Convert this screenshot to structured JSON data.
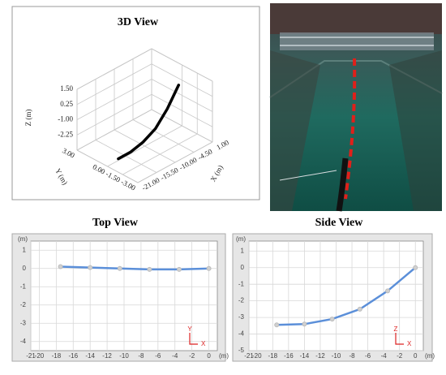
{
  "chart_data": [
    {
      "type": "line3d",
      "title": "3D View",
      "xlabel": "X (m)",
      "ylabel": "Y (m)",
      "zlabel": "Z (m)",
      "xlim": [
        -21,
        1
      ],
      "ylim": [
        -3,
        3
      ],
      "zlim": [
        -3.5,
        1.5
      ],
      "xticks": [
        {
          "value": 1,
          "label": "1.00"
        },
        {
          "value": -4.5,
          "label": "-4.50"
        },
        {
          "value": -10,
          "label": "-10.00"
        },
        {
          "value": -15.5,
          "label": "-15.50"
        },
        {
          "value": -21,
          "label": "-21.00"
        }
      ],
      "yticks": [
        {
          "value": 3,
          "label": "3.00"
        },
        {
          "value": 0,
          "label": "0.00"
        },
        {
          "value": -1.5,
          "label": "-1.50"
        },
        {
          "value": -3,
          "label": "-3.00"
        }
      ],
      "zticks": [
        {
          "value": 1.5,
          "label": "1.50"
        },
        {
          "value": 0.25,
          "label": "0.25"
        },
        {
          "value": -1,
          "label": "-1.00"
        },
        {
          "value": -2.25,
          "label": "-2.25"
        }
      ],
      "series": [
        {
          "color": "#000000",
          "x": [
            -17.5,
            -14,
            -10.5,
            -7,
            -3.5,
            0
          ],
          "y": [
            0.1,
            0.05,
            0,
            -0.05,
            -0.05,
            0
          ],
          "z": [
            -3.45,
            -3.4,
            -3.1,
            -2.5,
            -1.4,
            0
          ]
        }
      ]
    },
    {
      "type": "line",
      "title": "Top View",
      "x_unit": "(m)",
      "y_unit": "(m)",
      "axis_marker": [
        "Y",
        "X"
      ],
      "xlim": [
        -21,
        1
      ],
      "ylim": [
        -4.5,
        1.5
      ],
      "xticks": [
        -21,
        -20,
        -18,
        -16,
        -14,
        -12,
        -10,
        -8,
        -6,
        -4,
        -2,
        0
      ],
      "yticks": [
        1,
        0,
        -1,
        -2,
        -3,
        -4
      ],
      "series": [
        {
          "color": "#5b8fd9",
          "x": [
            -17.5,
            -14,
            -10.5,
            -7,
            -3.5,
            0
          ],
          "values": [
            0.1,
            0.05,
            0,
            -0.05,
            -0.05,
            0
          ]
        }
      ]
    },
    {
      "type": "line",
      "title": "Side View",
      "x_unit": "(m)",
      "y_unit": "(m)",
      "axis_marker": [
        "Z",
        "X"
      ],
      "xlim": [
        -21,
        1
      ],
      "ylim": [
        -5,
        1.6
      ],
      "xticks": [
        -21,
        -20,
        -18,
        -16,
        -14,
        -12,
        -10,
        -8,
        -6,
        -4,
        -2,
        0
      ],
      "yticks": [
        1,
        0,
        -1,
        -2,
        -3,
        -4,
        -5
      ],
      "series": [
        {
          "color": "#5b8fd9",
          "x": [
            -17.5,
            -14,
            -10.5,
            -7,
            -3.5,
            0
          ],
          "values": [
            -3.45,
            -3.4,
            -3.1,
            -2.5,
            -1.4,
            0
          ]
        }
      ]
    }
  ]
}
